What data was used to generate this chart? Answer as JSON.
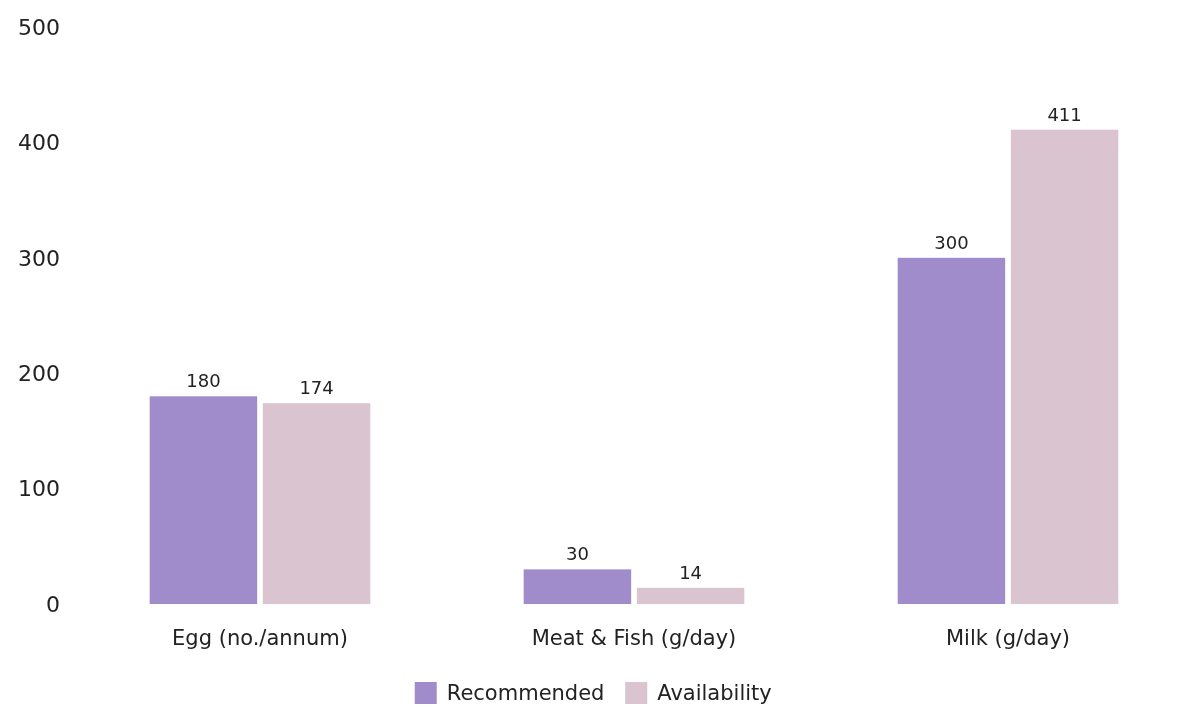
{
  "chart_data": {
    "type": "bar",
    "categories": [
      "Egg (no./annum)",
      "Meat & Fish (g/day)",
      "Milk (g/day)"
    ],
    "series": [
      {
        "name": "Recommended",
        "color": "#a18ccb",
        "values": [
          180,
          30,
          300
        ]
      },
      {
        "name": "Availability",
        "color": "#d9c4d0",
        "values": [
          174,
          14,
          411
        ]
      }
    ],
    "ylim": [
      0,
      500
    ],
    "yticks": [
      0,
      100,
      200,
      300,
      400,
      500
    ],
    "grid": false,
    "legend": "bottom",
    "data_labels": true
  }
}
